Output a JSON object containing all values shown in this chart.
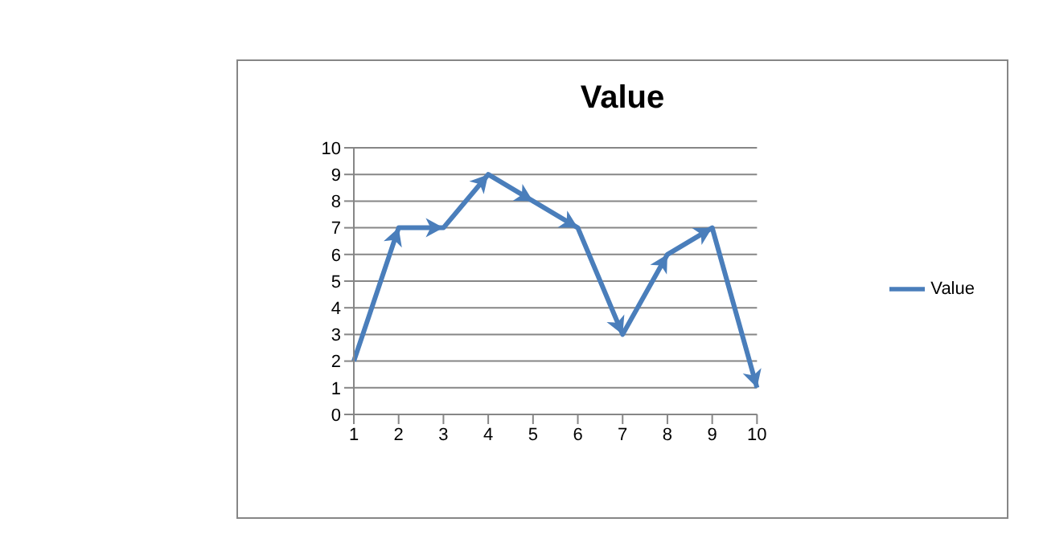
{
  "chart_data": {
    "type": "line",
    "title": "Value",
    "categories": [
      "1",
      "2",
      "3",
      "4",
      "5",
      "6",
      "7",
      "8",
      "9",
      "10"
    ],
    "series": [
      {
        "name": "Value",
        "color": "#4a7ebb",
        "values": [
          2,
          7,
          7,
          9,
          8,
          7,
          3,
          6,
          7,
          1
        ]
      }
    ],
    "ylim": [
      0,
      10
    ],
    "yticks": [
      0,
      1,
      2,
      3,
      4,
      5,
      6,
      7,
      8,
      9,
      10
    ],
    "grid": "y",
    "legend": "right",
    "line_style": "solid"
  }
}
